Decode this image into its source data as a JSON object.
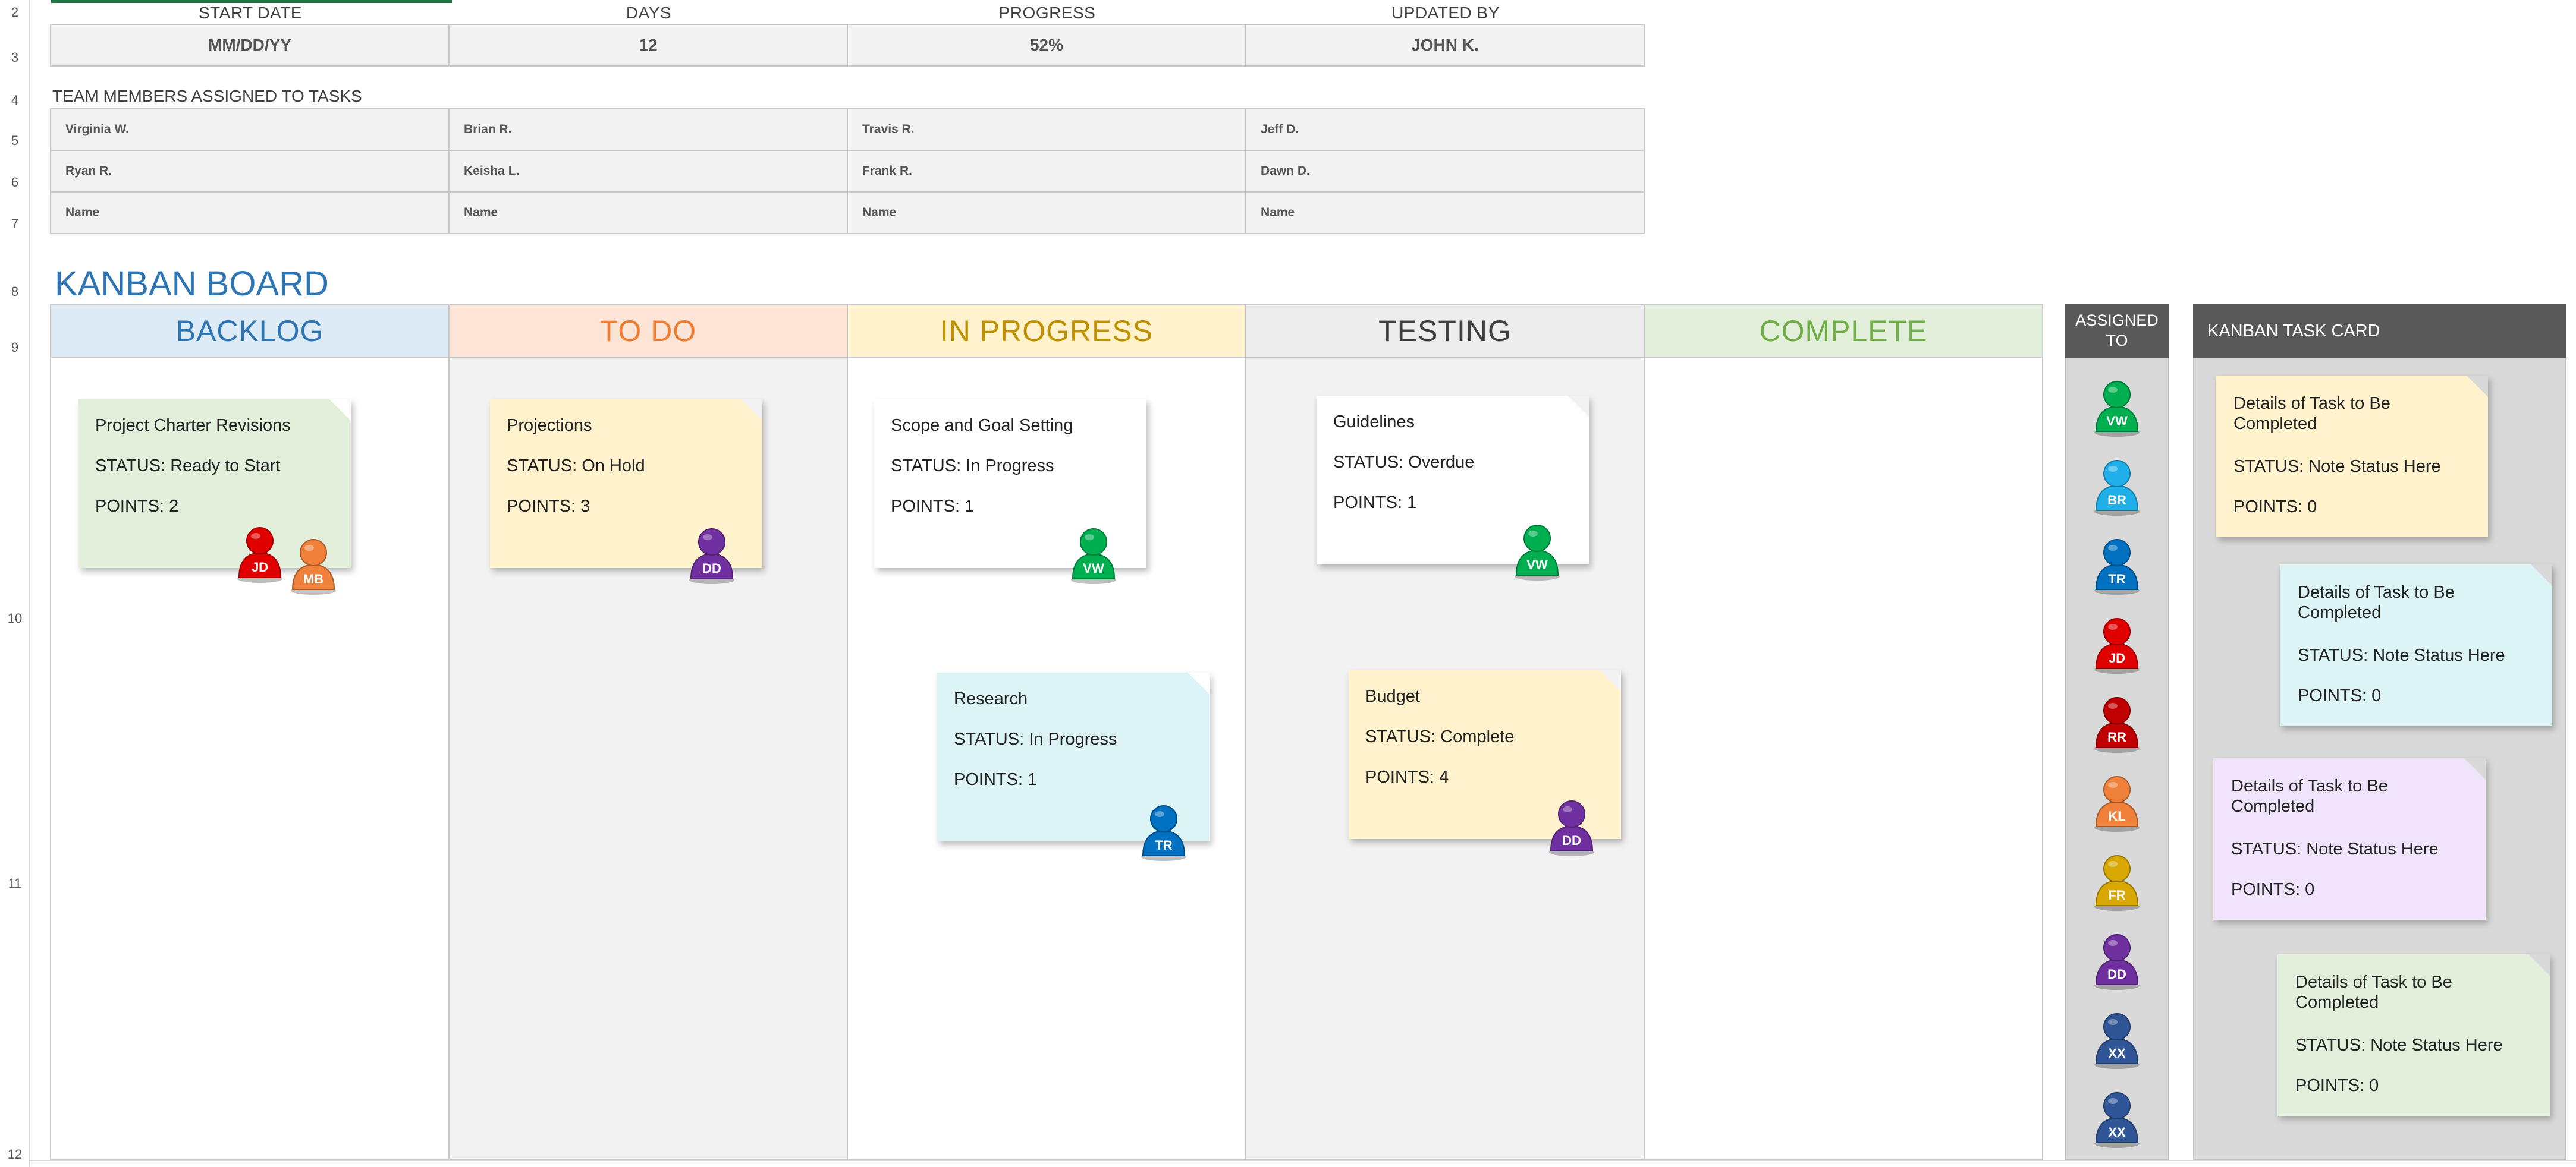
{
  "header": {
    "labels": {
      "start_date": "START DATE",
      "days": "DAYS",
      "progress": "PROGRESS",
      "updated_by": "UPDATED BY"
    },
    "values": {
      "start_date": "MM/DD/YY",
      "days": "12",
      "progress": "52%",
      "updated_by": "JOHN K."
    }
  },
  "row_numbers": [
    "2",
    "3",
    "4",
    "5",
    "6",
    "7",
    "8",
    "9",
    "10",
    "11",
    "12"
  ],
  "team": {
    "title": "TEAM MEMBERS ASSIGNED TO TASKS",
    "members": [
      [
        "Virginia W.",
        "Brian R.",
        "Travis R.",
        "Jeff D."
      ],
      [
        "Ryan R.",
        "Keisha L.",
        "Frank R.",
        "Dawn D."
      ],
      [
        "Name",
        "Name",
        "Name",
        "Name"
      ]
    ]
  },
  "board": {
    "title": "KANBAN BOARD",
    "columns": [
      {
        "label": "BACKLOG",
        "color": "#2e75b6",
        "bg": "#ddebf7",
        "body": "#ffffff"
      },
      {
        "label": "TO DO",
        "color": "#ed7d31",
        "bg": "#fce4d6",
        "body": "#f2f2f2"
      },
      {
        "label": "IN PROGRESS",
        "color": "#bf9000",
        "bg": "#fff2cc",
        "body": "#ffffff"
      },
      {
        "label": "TESTING",
        "color": "#404040",
        "bg": "#ededed",
        "body": "#f2f2f2"
      },
      {
        "label": "COMPLETE",
        "color": "#70ad47",
        "bg": "#e2efda",
        "body": "#ffffff"
      }
    ],
    "cards": [
      {
        "title": "Project Charter Revisions",
        "status": "STATUS: Ready to Start",
        "points": "POINTS: 2",
        "bg": "#e2efda",
        "assignees": [
          "JD",
          "MB"
        ]
      },
      {
        "title": "Projections",
        "status": "STATUS: On Hold",
        "points": "POINTS: 3",
        "bg": "#fff2cc",
        "assignees": [
          "DD"
        ]
      },
      {
        "title": "Scope and Goal Setting",
        "status": "STATUS: In Progress",
        "points": "POINTS: 1",
        "bg": "#ffffff",
        "assignees": [
          "VW"
        ]
      },
      {
        "title": "Research",
        "status": "STATUS: In Progress",
        "points": "POINTS: 1",
        "bg": "#ddf4f6",
        "assignees": [
          "TR"
        ]
      },
      {
        "title": "Guidelines",
        "status": "STATUS: Overdue",
        "points": "POINTS: 1",
        "bg": "#ffffff",
        "assignees": [
          "VW"
        ]
      },
      {
        "title": "Budget",
        "status": "STATUS: Complete",
        "points": "POINTS: 4",
        "bg": "#fff2cc",
        "assignees": [
          "DD"
        ]
      }
    ]
  },
  "assigned": {
    "title_line1": "ASSIGNED",
    "title_line2": "TO",
    "people": [
      {
        "initials": "VW",
        "color": "#00b050"
      },
      {
        "initials": "BR",
        "color": "#1fb0ea"
      },
      {
        "initials": "TR",
        "color": "#0070c0"
      },
      {
        "initials": "JD",
        "color": "#e00000"
      },
      {
        "initials": "RR",
        "color": "#c00000"
      },
      {
        "initials": "KL",
        "color": "#f0813a"
      },
      {
        "initials": "FR",
        "color": "#d8a800"
      },
      {
        "initials": "DD",
        "color": "#7030a0"
      },
      {
        "initials": "XX",
        "color": "#2f5597"
      },
      {
        "initials": "XX",
        "color": "#2f5597"
      }
    ]
  },
  "pawn_colors": {
    "JD": "#e00000",
    "MB": "#f0813a",
    "DD": "#7030a0",
    "VW": "#00b050",
    "TR": "#0070c0"
  },
  "task_card_panel": {
    "title": "KANBAN TASK CARD",
    "cards": [
      {
        "details": "Details of Task to Be Completed",
        "status": "STATUS: Note Status Here",
        "points": "POINTS: 0",
        "bg": "#fff2cc"
      },
      {
        "details": "Details of Task to Be Completed",
        "status": "STATUS: Note Status Here",
        "points": "POINTS: 0",
        "bg": "#ddf4f6"
      },
      {
        "details": "Details of Task to Be Completed",
        "status": "STATUS: Note Status Here",
        "points": "POINTS: 0",
        "bg": "#efe4fb"
      },
      {
        "details": "Details of Task to Be Completed",
        "status": "STATUS: Note Status Here",
        "points": "POINTS: 0",
        "bg": "#e2efda"
      }
    ]
  }
}
